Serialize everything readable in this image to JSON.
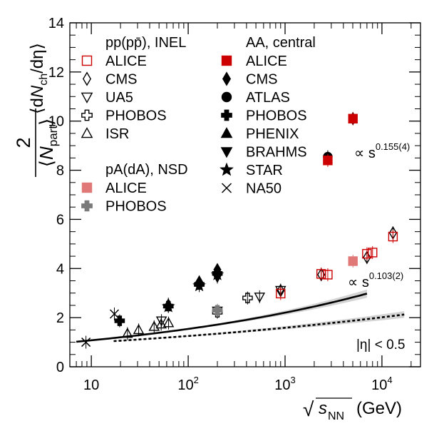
{
  "chart_data": {
    "type": "scatter",
    "x_scale": "log",
    "xlim": [
      6,
      25000
    ],
    "ylim": [
      0,
      14
    ],
    "ylabel": "2 / ⟨N_part⟩ ⟨dN_ch/dη⟩",
    "xlabel": "√s_NN (GeV)",
    "x_ticks": [
      {
        "x": 10,
        "base": "10",
        "exp": ""
      },
      {
        "x": 100,
        "base": "10",
        "exp": "2"
      },
      {
        "x": 1000,
        "base": "10",
        "exp": "3"
      },
      {
        "x": 10000,
        "base": "10",
        "exp": "4"
      }
    ],
    "y_ticks": [
      0,
      2,
      4,
      6,
      8,
      10,
      12,
      14
    ],
    "annotations": {
      "eta": "|η| < 0.5",
      "fit_aa": {
        "prefix": "∝ s",
        "exp": "0.155(4)"
      },
      "fit_pp": {
        "prefix": "∝ s",
        "exp": "0.103(2)"
      }
    },
    "legend": {
      "pp_header": "pp(pp̄), INEL",
      "pA_header": "pA(dA), NSD",
      "aa_header": "AA, central",
      "pp_items": [
        {
          "label": "ALICE",
          "marker": "open-square",
          "color": "#cc0000"
        },
        {
          "label": "CMS",
          "marker": "open-diamond",
          "color": "#000000"
        },
        {
          "label": "UA5",
          "marker": "open-triangle-down",
          "color": "#000000"
        },
        {
          "label": "PHOBOS",
          "marker": "open-cross",
          "color": "#000000"
        },
        {
          "label": "ISR",
          "marker": "open-triangle-up",
          "color": "#000000"
        }
      ],
      "pA_items": [
        {
          "label": "ALICE",
          "marker": "filled-square",
          "color": "#e07878"
        },
        {
          "label": "PHOBOS",
          "marker": "filled-cross",
          "color": "#7a7a7a"
        }
      ],
      "aa_items": [
        {
          "label": "ALICE",
          "marker": "filled-square",
          "color": "#cc0000"
        },
        {
          "label": "CMS",
          "marker": "filled-diamond",
          "color": "#000000"
        },
        {
          "label": "ATLAS",
          "marker": "filled-circle",
          "color": "#000000"
        },
        {
          "label": "PHOBOS",
          "marker": "filled-cross",
          "color": "#000000"
        },
        {
          "label": "PHENIX",
          "marker": "filled-triangle-up",
          "color": "#000000"
        },
        {
          "label": "BRAHMS",
          "marker": "filled-triangle-down",
          "color": "#000000"
        },
        {
          "label": "STAR",
          "marker": "filled-star",
          "color": "#000000"
        },
        {
          "label": "NA50",
          "marker": "x-cross",
          "color": "#000000"
        }
      ]
    },
    "curves": [
      {
        "style": "solid",
        "band": true,
        "a": 0.755,
        "p": 0.155,
        "xrange": [
          7,
          7000
        ]
      },
      {
        "style": "dotted",
        "band": true,
        "a": 0.78,
        "p": 0.103,
        "xrange": [
          17,
          17000
        ]
      }
    ],
    "series": [
      {
        "marker": "filled-cross",
        "color": "#000000",
        "points": [
          [
            19.6,
            1.87
          ],
          [
            62.4,
            2.47
          ],
          [
            130,
            3.35
          ],
          [
            200,
            3.8
          ]
        ]
      },
      {
        "marker": "filled-triangle-up",
        "color": "#000000",
        "points": [
          [
            62.4,
            2.55
          ],
          [
            130,
            3.45
          ],
          [
            200,
            3.9
          ]
        ]
      },
      {
        "marker": "filled-triangle-down",
        "color": "#000000",
        "points": [
          [
            200,
            3.65
          ]
        ]
      },
      {
        "marker": "filled-star",
        "color": "#000000",
        "points": [
          [
            62.4,
            2.45
          ],
          [
            130,
            3.3
          ],
          [
            200,
            3.75
          ]
        ]
      },
      {
        "marker": "filled-diamond",
        "color": "#000000",
        "points": [
          [
            130,
            3.45
          ],
          [
            200,
            3.95
          ],
          [
            2760,
            8.5
          ],
          [
            5020,
            10.1
          ]
        ]
      },
      {
        "marker": "filled-circle",
        "color": "#000000",
        "points": [
          [
            2760,
            8.55
          ]
        ]
      },
      {
        "marker": "filled-square",
        "color": "#cc0000",
        "points": [
          [
            2760,
            8.4
          ],
          [
            5020,
            10.1
          ]
        ]
      },
      {
        "marker": "x-cross",
        "color": "#000000",
        "points": [
          [
            8.8,
            1.0
          ],
          [
            17.3,
            2.15
          ]
        ]
      },
      {
        "marker": "open-triangle-up",
        "color": "#000000",
        "points": [
          [
            23.6,
            1.35
          ],
          [
            30.8,
            1.5
          ],
          [
            44.5,
            1.63
          ],
          [
            52.6,
            1.73
          ],
          [
            62.7,
            1.78
          ]
        ]
      },
      {
        "marker": "open-triangle-down",
        "color": "#000000",
        "points": [
          [
            53,
            1.88
          ],
          [
            200,
            2.28
          ],
          [
            546,
            2.85
          ],
          [
            900,
            3.12
          ]
        ]
      },
      {
        "marker": "open-cross",
        "color": "#000000",
        "points": [
          [
            200,
            2.22
          ],
          [
            410,
            2.8
          ]
        ]
      },
      {
        "marker": "open-diamond",
        "color": "#000000",
        "points": [
          [
            900,
            3.1
          ],
          [
            2360,
            3.75
          ],
          [
            7000,
            4.45
          ],
          [
            13000,
            5.45
          ]
        ]
      },
      {
        "marker": "open-square",
        "color": "#cc0000",
        "points": [
          [
            900,
            2.98
          ],
          [
            2760,
            3.75
          ],
          [
            2360,
            3.78
          ],
          [
            7000,
            4.6
          ],
          [
            8000,
            4.65
          ],
          [
            13000,
            5.3
          ]
        ]
      },
      {
        "marker": "filled-square",
        "color": "#e07878",
        "points": [
          [
            5020,
            4.3
          ]
        ]
      },
      {
        "marker": "filled-cross",
        "color": "#7a7a7a",
        "points": [
          [
            200,
            2.3
          ]
        ]
      }
    ]
  }
}
